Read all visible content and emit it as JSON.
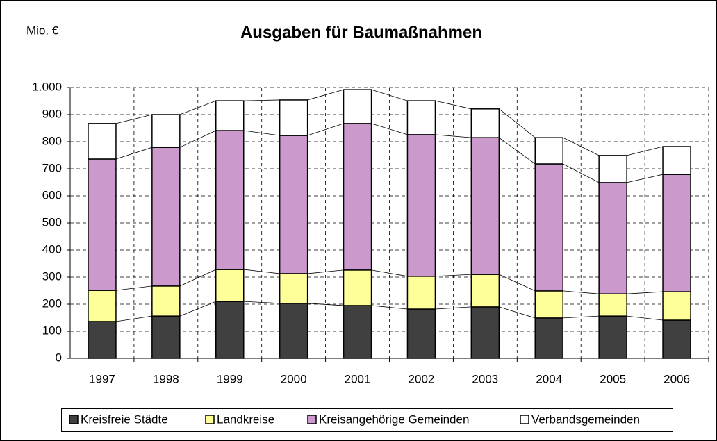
{
  "chart_data": {
    "type": "stacked_bar",
    "title": "Ausgaben für Baumaßnahmen",
    "y_label": "Mio. €",
    "categories": [
      "1997",
      "1998",
      "1999",
      "2000",
      "2001",
      "2002",
      "2003",
      "2004",
      "2005",
      "2006"
    ],
    "series": [
      {
        "name": "Kreisfreie Städte",
        "color": "#404040",
        "values": [
          136,
          156,
          210,
          203,
          195,
          182,
          190,
          149,
          156,
          141
        ]
      },
      {
        "name": "Landkreise",
        "color": "#ffff99",
        "values": [
          115,
          111,
          118,
          110,
          131,
          121,
          120,
          100,
          82,
          105
        ]
      },
      {
        "name": "Kreisangehörige Gemeinden",
        "color": "#cc99cc",
        "values": [
          485,
          512,
          513,
          510,
          541,
          523,
          505,
          469,
          411,
          433
        ]
      },
      {
        "name": "Verbandsgemeinden",
        "color": "#ffffff",
        "values": [
          131,
          121,
          110,
          131,
          125,
          125,
          106,
          97,
          100,
          103
        ]
      }
    ],
    "ylim": [
      0,
      1000
    ],
    "yticks": [
      0,
      100,
      200,
      300,
      400,
      500,
      600,
      700,
      800,
      900,
      {
        "value": 1000,
        "label": "1.000"
      }
    ],
    "grid": true,
    "legend": "bottom"
  }
}
